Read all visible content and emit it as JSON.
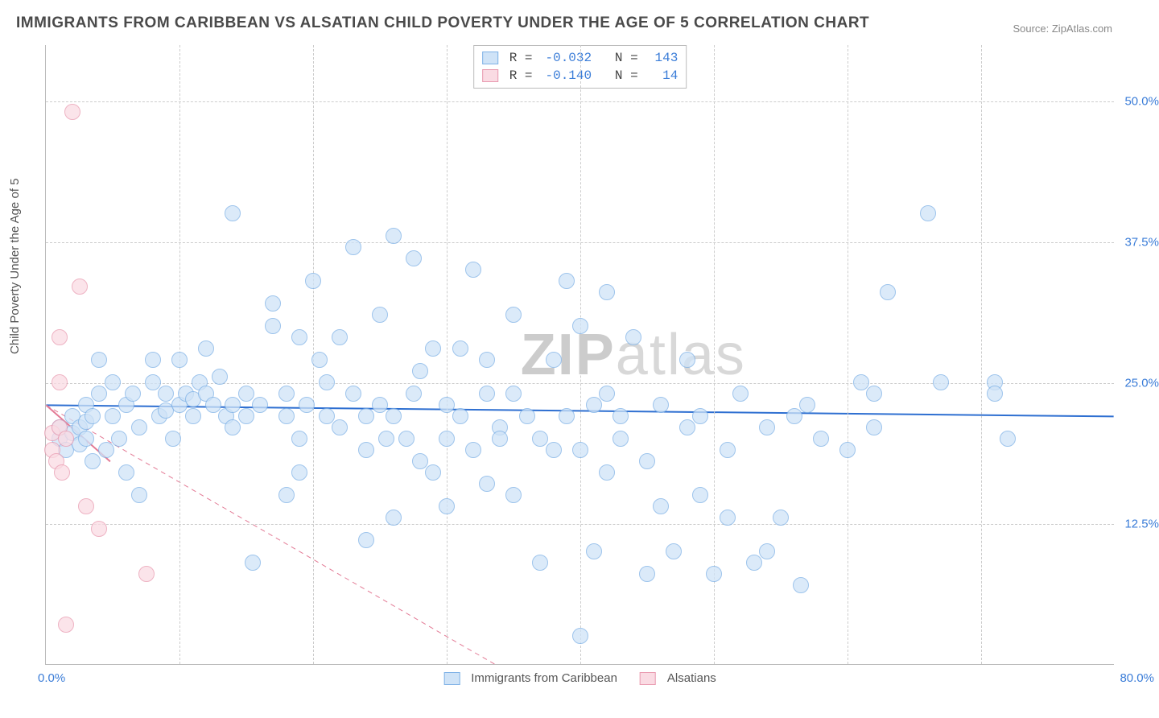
{
  "title": "IMMIGRANTS FROM CARIBBEAN VS ALSATIAN CHILD POVERTY UNDER THE AGE OF 5 CORRELATION CHART",
  "source": "Source: ZipAtlas.com",
  "watermark_bold": "ZIP",
  "watermark_light": "atlas",
  "y_axis": {
    "label": "Child Poverty Under the Age of 5",
    "min": 0,
    "max": 55,
    "ticks": [
      12.5,
      25.0,
      37.5,
      50.0
    ],
    "tick_format": "pct1"
  },
  "x_axis": {
    "min": 0,
    "max": 80,
    "min_label": "0.0%",
    "max_label": "80.0%",
    "grid_ticks": [
      10,
      20,
      30,
      40,
      50,
      60,
      70
    ]
  },
  "plot_style": {
    "background": "#ffffff",
    "grid_color": "#cccccc",
    "axis_color": "#bbbbbb",
    "tick_color": "#3b7dd8",
    "marker_radius": 10,
    "marker_stroke_width": 1
  },
  "series": [
    {
      "name": "Immigrants from Caribbean",
      "fill": "#cfe3f7",
      "stroke": "#7eb1e6",
      "fill_opacity": 0.75,
      "R": "-0.032",
      "N": "143",
      "trend": {
        "y_at_xmin": 23.0,
        "y_at_xmax": 22.0,
        "color": "#2e6fd1",
        "width": 2,
        "dash": "none"
      },
      "points": [
        [
          1,
          20
        ],
        [
          1,
          21
        ],
        [
          1.5,
          19
        ],
        [
          2,
          20.5
        ],
        [
          2,
          22
        ],
        [
          2.5,
          21
        ],
        [
          2.5,
          19.5
        ],
        [
          3,
          20
        ],
        [
          3,
          21.5
        ],
        [
          3,
          23
        ],
        [
          3.5,
          18
        ],
        [
          3.5,
          22
        ],
        [
          4,
          24
        ],
        [
          4,
          27
        ],
        [
          4.5,
          19
        ],
        [
          5,
          22
        ],
        [
          5,
          25
        ],
        [
          5.5,
          20
        ],
        [
          6,
          23
        ],
        [
          6,
          17
        ],
        [
          6.5,
          24
        ],
        [
          7,
          21
        ],
        [
          7,
          15
        ],
        [
          8,
          27
        ],
        [
          8,
          25
        ],
        [
          8.5,
          22
        ],
        [
          9,
          22.5
        ],
        [
          9,
          24
        ],
        [
          9.5,
          20
        ],
        [
          10,
          23
        ],
        [
          10,
          27
        ],
        [
          10.5,
          24
        ],
        [
          11,
          22
        ],
        [
          11,
          23.5
        ],
        [
          11.5,
          25
        ],
        [
          12,
          24
        ],
        [
          12,
          28
        ],
        [
          12.5,
          23
        ],
        [
          13,
          25.5
        ],
        [
          13.5,
          22
        ],
        [
          14,
          23
        ],
        [
          14,
          21
        ],
        [
          14,
          40
        ],
        [
          15,
          24
        ],
        [
          15,
          22
        ],
        [
          15.5,
          9
        ],
        [
          16,
          23
        ],
        [
          17,
          32
        ],
        [
          17,
          30
        ],
        [
          18,
          22
        ],
        [
          18,
          24
        ],
        [
          18,
          15
        ],
        [
          19,
          20
        ],
        [
          19,
          17
        ],
        [
          19,
          29
        ],
        [
          19.5,
          23
        ],
        [
          20,
          34
        ],
        [
          20.5,
          27
        ],
        [
          21,
          25
        ],
        [
          21,
          22
        ],
        [
          22,
          21
        ],
        [
          22,
          29
        ],
        [
          23,
          24
        ],
        [
          23,
          37
        ],
        [
          24,
          22
        ],
        [
          24,
          19
        ],
        [
          24,
          11
        ],
        [
          25,
          31
        ],
        [
          25,
          23
        ],
        [
          25.5,
          20
        ],
        [
          26,
          38
        ],
        [
          26,
          13
        ],
        [
          26,
          22
        ],
        [
          27,
          20
        ],
        [
          27.5,
          24
        ],
        [
          27.5,
          36
        ],
        [
          28,
          18
        ],
        [
          28,
          26
        ],
        [
          29,
          17
        ],
        [
          29,
          28
        ],
        [
          30,
          20
        ],
        [
          30,
          23
        ],
        [
          30,
          14
        ],
        [
          31,
          22
        ],
        [
          31,
          28
        ],
        [
          32,
          35
        ],
        [
          32,
          19
        ],
        [
          33,
          16
        ],
        [
          33,
          24
        ],
        [
          33,
          27
        ],
        [
          34,
          21
        ],
        [
          34,
          20
        ],
        [
          35,
          24
        ],
        [
          35,
          15
        ],
        [
          35,
          31
        ],
        [
          36,
          22
        ],
        [
          37,
          20
        ],
        [
          37,
          9
        ],
        [
          38,
          19
        ],
        [
          38,
          27
        ],
        [
          39,
          34
        ],
        [
          39,
          22
        ],
        [
          40,
          2.5
        ],
        [
          40,
          19
        ],
        [
          40,
          30
        ],
        [
          41,
          23
        ],
        [
          41,
          10
        ],
        [
          42,
          24
        ],
        [
          42,
          17
        ],
        [
          42,
          33
        ],
        [
          43,
          20
        ],
        [
          43,
          22
        ],
        [
          44,
          29
        ],
        [
          45,
          18
        ],
        [
          45,
          8
        ],
        [
          46,
          23
        ],
        [
          46,
          14
        ],
        [
          47,
          10
        ],
        [
          48,
          21
        ],
        [
          48,
          27
        ],
        [
          49,
          15
        ],
        [
          49,
          22
        ],
        [
          50,
          8
        ],
        [
          51,
          19
        ],
        [
          51,
          13
        ],
        [
          52,
          24
        ],
        [
          53,
          9
        ],
        [
          54,
          10
        ],
        [
          54,
          21
        ],
        [
          55,
          13
        ],
        [
          56,
          22
        ],
        [
          56.5,
          7
        ],
        [
          57,
          23
        ],
        [
          58,
          20
        ],
        [
          60,
          19
        ],
        [
          61,
          25
        ],
        [
          62,
          21
        ],
        [
          62,
          24
        ],
        [
          63,
          33
        ],
        [
          66,
          40
        ],
        [
          67,
          25
        ],
        [
          71,
          25
        ],
        [
          71,
          24
        ],
        [
          72,
          20
        ]
      ]
    },
    {
      "name": "Alsatians",
      "fill": "#fadbe3",
      "stroke": "#e99ab0",
      "fill_opacity": 0.75,
      "R": "-0.140",
      "N": "14",
      "trend": {
        "y_at_xmin": 23.0,
        "y_at_xmax": 0.0,
        "x_end_frac": 0.42,
        "color": "#e37a95",
        "width": 1,
        "dash": "6,5"
      },
      "trend_solid": {
        "y_at_xmin": 23.0,
        "y_end": 18.0,
        "x_end_frac": 0.06,
        "color": "#e37a95",
        "width": 2
      },
      "points": [
        [
          0.5,
          19
        ],
        [
          0.5,
          20.5
        ],
        [
          0.8,
          18
        ],
        [
          1,
          21
        ],
        [
          1,
          29
        ],
        [
          1,
          25
        ],
        [
          1.2,
          17
        ],
        [
          1.5,
          20
        ],
        [
          1.5,
          3.5
        ],
        [
          2,
          49
        ],
        [
          2.5,
          33.5
        ],
        [
          3,
          14
        ],
        [
          4,
          12
        ],
        [
          7.5,
          8
        ]
      ]
    }
  ],
  "bottom_legend": [
    {
      "label": "Immigrants from Caribbean",
      "fill": "#cfe3f7",
      "stroke": "#7eb1e6"
    },
    {
      "label": "Alsatians",
      "fill": "#fadbe3",
      "stroke": "#e99ab0"
    }
  ]
}
